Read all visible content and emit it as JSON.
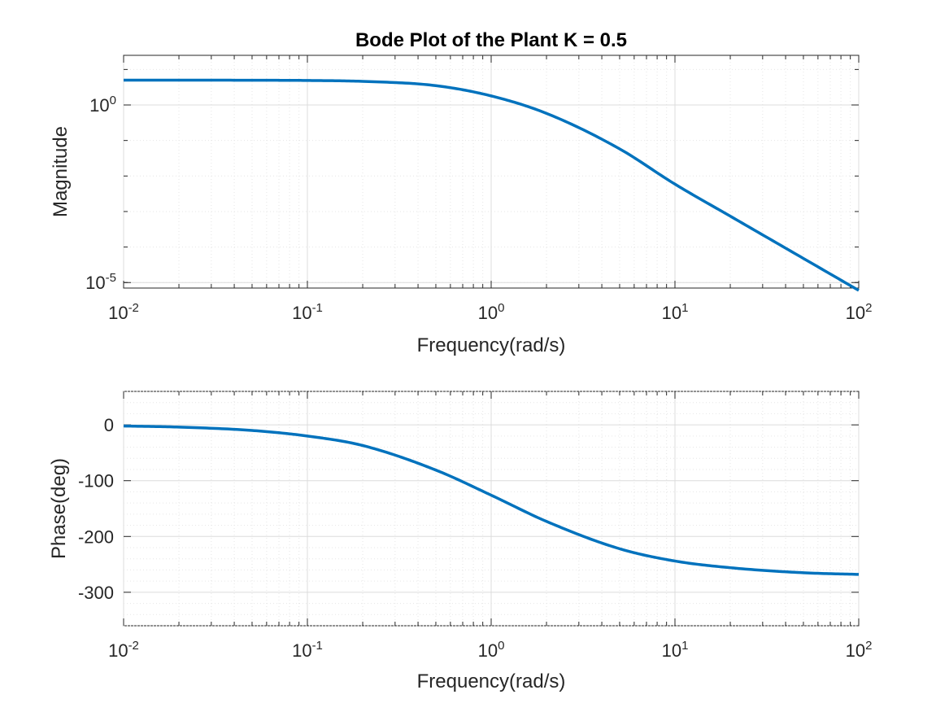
{
  "colors": {
    "line": "#0072BD",
    "axis": "#262626",
    "grid_major": "#dcdcdc",
    "grid_minor": "#e6e6e6",
    "background": "#ffffff"
  },
  "chart_data": [
    {
      "type": "line",
      "title": "Bode Plot of the Plant K = 0.5",
      "xlabel": "Frequency(rad/s)",
      "ylabel": "Magnitude",
      "xscale": "log",
      "yscale": "log",
      "xlim": [
        0.01,
        100
      ],
      "ylim": [
        7e-06,
        25
      ],
      "grid": true,
      "minor_grid": true,
      "x_ticks": [
        {
          "mantissa": "10",
          "exp": "-2"
        },
        {
          "mantissa": "10",
          "exp": "-1"
        },
        {
          "mantissa": "10",
          "exp": "0"
        },
        {
          "mantissa": "10",
          "exp": "1"
        },
        {
          "mantissa": "10",
          "exp": "2"
        }
      ],
      "y_ticks": [
        {
          "mantissa": "10",
          "exp": "-5"
        },
        {
          "mantissa": "10",
          "exp": "0"
        }
      ],
      "x": [
        0.01,
        0.02,
        0.05,
        0.1,
        0.2,
        0.5,
        1,
        2,
        5,
        10,
        20,
        50,
        100
      ],
      "y": [
        5.0,
        5.0,
        4.97,
        4.9,
        4.62,
        3.5,
        1.8,
        0.58,
        0.058,
        0.0059,
        0.00074,
        4.78e-05,
        6e-06
      ]
    },
    {
      "type": "line",
      "title": "",
      "xlabel": "Frequency(rad/s)",
      "ylabel": "Phase(deg)",
      "xscale": "log",
      "yscale": "linear",
      "xlim": [
        0.01,
        100
      ],
      "ylim": [
        -360,
        60
      ],
      "grid": true,
      "minor_grid": true,
      "x_ticks": [
        {
          "mantissa": "10",
          "exp": "-2"
        },
        {
          "mantissa": "10",
          "exp": "-1"
        },
        {
          "mantissa": "10",
          "exp": "0"
        },
        {
          "mantissa": "10",
          "exp": "1"
        },
        {
          "mantissa": "10",
          "exp": "2"
        }
      ],
      "y_ticks": [
        "0",
        "-100",
        "-200",
        "-300"
      ],
      "x": [
        0.01,
        0.02,
        0.05,
        0.1,
        0.2,
        0.5,
        1,
        2,
        5,
        10,
        20,
        50,
        100
      ],
      "y": [
        -2,
        -4,
        -10,
        -20,
        -37,
        -81,
        -126,
        -173,
        -222,
        -244,
        -256,
        -265,
        -268
      ]
    }
  ]
}
